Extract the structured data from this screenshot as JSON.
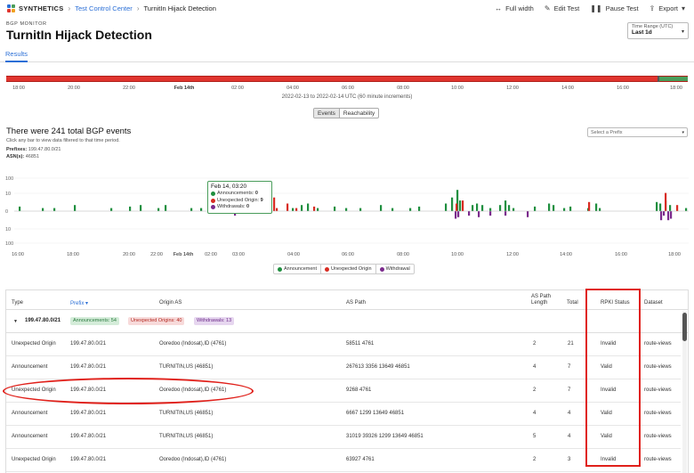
{
  "header": {
    "brand": "SYNTHETICS",
    "breadcrumb_link": "Test Control Center",
    "breadcrumb_current": "TurnitIn Hijack Detection",
    "actions": {
      "full_width": "Full width",
      "edit_test": "Edit Test",
      "pause_test": "Pause Test",
      "export": "Export"
    }
  },
  "eyebrow": "BGP MONITOR",
  "title": "TurnitIn Hijack Detection",
  "time_range": {
    "label": "Time Range (UTC)",
    "value": "Last 1d"
  },
  "tabs": {
    "results": "Results"
  },
  "timeline": {
    "ticks": [
      "18:00",
      "20:00",
      "22:00",
      "Feb 14th",
      "02:00",
      "04:00",
      "06:00",
      "08:00",
      "10:00",
      "12:00",
      "14:00",
      "16:00",
      "18:00"
    ],
    "subtitle": "2022-02-13 to 2022-02-14 UTC (60 minute increments)"
  },
  "view_toggle": {
    "events": "Events",
    "reachability": "Reachability"
  },
  "events": {
    "title": "There were 241 total BGP events",
    "help": "Click any bar to view data filtered to that time period.",
    "prefixes_label": "Prefixes:",
    "prefixes_value": "199.47.80.0/21",
    "asn_label": "ASN(s):",
    "asn_value": "46851",
    "prefix_select_placeholder": "Select a Prefix"
  },
  "tooltip": {
    "title": "Feb 14, 03:20",
    "rows": [
      {
        "label": "Announcements:",
        "value": "0"
      },
      {
        "label": "Unexpected Origin:",
        "value": "9"
      },
      {
        "label": "Withdrawals:",
        "value": "0"
      }
    ]
  },
  "legend": [
    "Announcement",
    "Unexpected Origin",
    "Withdrawal"
  ],
  "colors": {
    "announcement": "#1f8f3f",
    "unexpected": "#d82b22",
    "withdrawal": "#7b2a8c",
    "accent": "#2b6fd6"
  },
  "chart_data": {
    "type": "bar",
    "y_tick_labels": [
      "100",
      "10",
      "0",
      "10",
      "100"
    ],
    "x_tick_labels": [
      "16:00",
      "18:00",
      "20:00",
      "22:00",
      "Feb 14th",
      "02:00",
      "03:00",
      "04:00",
      "06:00",
      "08:00",
      "10:00",
      "12:00",
      "14:00",
      "16:00",
      "18:00"
    ],
    "announcement": [
      [
        21,
        3
      ],
      [
        47,
        2
      ],
      [
        60,
        2
      ],
      [
        83,
        4
      ],
      [
        124,
        2
      ],
      [
        145,
        3
      ],
      [
        157,
        4
      ],
      [
        177,
        2
      ],
      [
        185,
        4
      ],
      [
        214,
        2
      ],
      [
        225,
        2
      ],
      [
        242,
        2
      ],
      [
        250,
        3
      ],
      [
        263,
        4
      ],
      [
        276,
        2
      ],
      [
        295,
        3
      ],
      [
        303,
        9
      ],
      [
        328,
        2
      ],
      [
        338,
        4
      ],
      [
        345,
        5
      ],
      [
        356,
        2
      ],
      [
        375,
        3
      ],
      [
        388,
        2
      ],
      [
        404,
        2
      ],
      [
        427,
        4
      ],
      [
        440,
        2
      ],
      [
        460,
        2
      ],
      [
        470,
        3
      ],
      [
        500,
        5
      ],
      [
        507,
        9
      ],
      [
        513,
        14
      ],
      [
        516,
        7
      ],
      [
        530,
        4
      ],
      [
        535,
        5
      ],
      [
        541,
        4
      ],
      [
        550,
        2
      ],
      [
        561,
        4
      ],
      [
        567,
        7
      ],
      [
        571,
        4
      ],
      [
        576,
        2
      ],
      [
        600,
        3
      ],
      [
        616,
        5
      ],
      [
        621,
        4
      ],
      [
        633,
        2
      ],
      [
        640,
        3
      ],
      [
        660,
        2
      ],
      [
        669,
        5
      ],
      [
        673,
        2
      ],
      [
        737,
        6
      ],
      [
        741,
        5
      ],
      [
        747,
        7
      ],
      [
        752,
        4
      ],
      [
        770,
        2
      ]
    ],
    "unexpected": [
      [
        292,
        3
      ],
      [
        307,
        9
      ],
      [
        310,
        2
      ],
      [
        322,
        5
      ],
      [
        332,
        2
      ],
      [
        352,
        3
      ],
      [
        512,
        5
      ],
      [
        519,
        7
      ],
      [
        661,
        6
      ],
      [
        747,
        12
      ],
      [
        760,
        4
      ]
    ],
    "withdrawal": [
      [
        263,
        3
      ],
      [
        511,
        5
      ],
      [
        514,
        4
      ],
      [
        526,
        3
      ],
      [
        537,
        4
      ],
      [
        550,
        3
      ],
      [
        567,
        3
      ],
      [
        592,
        4
      ],
      [
        742,
        6
      ],
      [
        745,
        3
      ],
      [
        750,
        6
      ],
      [
        753,
        5
      ]
    ]
  },
  "table": {
    "headers": {
      "type": "Type",
      "prefix": "Prefix",
      "origin_as": "Origin AS",
      "as_path": "AS Path",
      "as_path_length": "AS Path",
      "as_path_length2": "Length",
      "total": "Total",
      "rpki": "RPKI Status",
      "dataset": "Dataset"
    },
    "group": {
      "prefix": "199.47.80.0/21",
      "announcements": "Announcements: 54",
      "unexpected": "Unexpected Origins: 40",
      "withdrawals": "Withdrawals: 13"
    },
    "rows": [
      {
        "type": "Unexpected Origin",
        "prefix": "199.47.80.0/21",
        "origin": "Ooredoo (Indosat),ID (4761)",
        "path": "58511 4761",
        "length": "2",
        "total": "21",
        "rpki": "Invalid",
        "dataset": "route-views"
      },
      {
        "type": "Announcement",
        "prefix": "199.47.80.0/21",
        "origin": "TURNITIN,US (46851)",
        "path": "267613 3356 13649 46851",
        "length": "4",
        "total": "7",
        "rpki": "Valid",
        "dataset": "route-views"
      },
      {
        "type": "Unexpected Origin",
        "prefix": "199.47.80.0/21",
        "origin": "Ooredoo (Indosat),ID (4761)",
        "path": "9268 4761",
        "length": "2",
        "total": "7",
        "rpki": "Invalid",
        "dataset": "route-views"
      },
      {
        "type": "Announcement",
        "prefix": "199.47.80.0/21",
        "origin": "TURNITIN,US (46851)",
        "path": "6667 1299 13649 46851",
        "length": "4",
        "total": "4",
        "rpki": "Valid",
        "dataset": "route-views"
      },
      {
        "type": "Announcement",
        "prefix": "199.47.80.0/21",
        "origin": "TURNITIN,US (46851)",
        "path": "31019 39326 1299 13649 46851",
        "length": "5",
        "total": "4",
        "rpki": "Valid",
        "dataset": "route-views"
      },
      {
        "type": "Unexpected Origin",
        "prefix": "199.47.80.0/21",
        "origin": "Ooredoo (Indosat),ID (4761)",
        "path": "63927 4761",
        "length": "2",
        "total": "3",
        "rpki": "Invalid",
        "dataset": "route-views"
      }
    ]
  }
}
